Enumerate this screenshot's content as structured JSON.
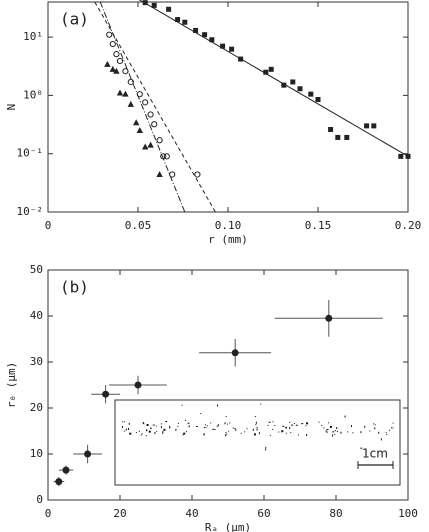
{
  "chart_data": [
    {
      "type": "scatter",
      "annotation": "(a)",
      "xlabel": "r (mm)",
      "ylabel": "N",
      "log_y": true,
      "grid": false,
      "xlim": [
        0,
        0.2
      ],
      "xticks": [
        0,
        0.05,
        {
          "value": 0.1,
          "label": "0.10"
        },
        0.15,
        {
          "value": 0.2,
          "label": "0.20"
        }
      ],
      "ylim": [
        0.01,
        40
      ],
      "yticks": [
        {
          "value": 0.01,
          "label": "10⁻²"
        },
        {
          "value": 0.1,
          "label": "10⁻¹"
        },
        {
          "value": 1,
          "label": "10⁰"
        },
        {
          "value": 10,
          "label": "10¹"
        }
      ],
      "series": [
        {
          "marker": "square",
          "color": "#222222",
          "x": [
            0.054,
            0.059,
            0.067,
            0.072,
            0.076,
            0.082,
            0.087,
            0.091,
            0.097,
            0.102,
            0.107,
            0.121,
            0.124,
            0.131,
            0.136,
            0.14,
            0.146,
            0.15,
            0.157,
            0.161,
            0.166,
            0.177,
            0.181,
            0.196,
            0.2
          ],
          "values": [
            39,
            35,
            30,
            20,
            18,
            13,
            11,
            9,
            7,
            6.2,
            4.2,
            2.5,
            2.8,
            1.5,
            1.7,
            1.3,
            1.05,
            0.85,
            0.26,
            0.19,
            0.19,
            0.3,
            0.3,
            0.09,
            0.09
          ]
        },
        {
          "marker": "circle",
          "color": "#222222",
          "x": [
            0.034,
            0.036,
            0.038,
            0.04,
            0.043,
            0.046,
            0.051,
            0.054,
            0.057,
            0.059,
            0.062,
            0.064,
            0.066,
            0.069,
            0.083
          ],
          "values": [
            11,
            7.6,
            5.1,
            3.9,
            2.6,
            1.7,
            1.05,
            0.76,
            0.47,
            0.32,
            0.17,
            0.09,
            0.09,
            0.044,
            0.044
          ]
        },
        {
          "marker": "triangle",
          "color": "#222222",
          "x": [
            0.033,
            0.036,
            0.038,
            0.04,
            0.043,
            0.046,
            0.049,
            0.051,
            0.054,
            0.057,
            0.062
          ],
          "values": [
            3.4,
            2.8,
            2.6,
            1.1,
            1.05,
            0.7,
            0.34,
            0.25,
            0.13,
            0.14,
            0.044
          ]
        },
        {
          "marker": "line",
          "style": "solid",
          "color": "#222222",
          "x": [
            0.05,
            0.2
          ],
          "values": [
            45,
            0.09
          ]
        },
        {
          "marker": "line",
          "style": "dashed",
          "color": "#222222",
          "x": [
            0.026,
            0.093
          ],
          "values": [
            40,
            0.01
          ]
        },
        {
          "marker": "line",
          "style": "dashdot",
          "color": "#222222",
          "x": [
            0.029,
            0.076
          ],
          "values": [
            40,
            0.01
          ]
        }
      ]
    },
    {
      "type": "scatter",
      "annotation": "(b)",
      "xlabel": "Rₐ (μm)",
      "ylabel": "r₀ (μm)",
      "log_y": false,
      "grid": false,
      "xlim": [
        0,
        100
      ],
      "xticks": [
        0,
        20,
        40,
        60,
        80,
        100
      ],
      "ylim": [
        0,
        50
      ],
      "yticks": [
        0,
        10,
        20,
        30,
        40,
        50
      ],
      "series": [
        {
          "marker": "dot",
          "color": "#222222",
          "x": [
            3,
            5,
            11,
            16,
            25,
            52,
            78
          ],
          "values": [
            4,
            6.5,
            10,
            23,
            25,
            32,
            39.5
          ],
          "xerr": [
            1.5,
            2,
            4,
            4,
            8,
            10,
            15
          ],
          "yerr": [
            1,
            1,
            2,
            2,
            2,
            3,
            4
          ]
        }
      ]
    }
  ],
  "inset": {
    "scale_label": "1cm"
  }
}
